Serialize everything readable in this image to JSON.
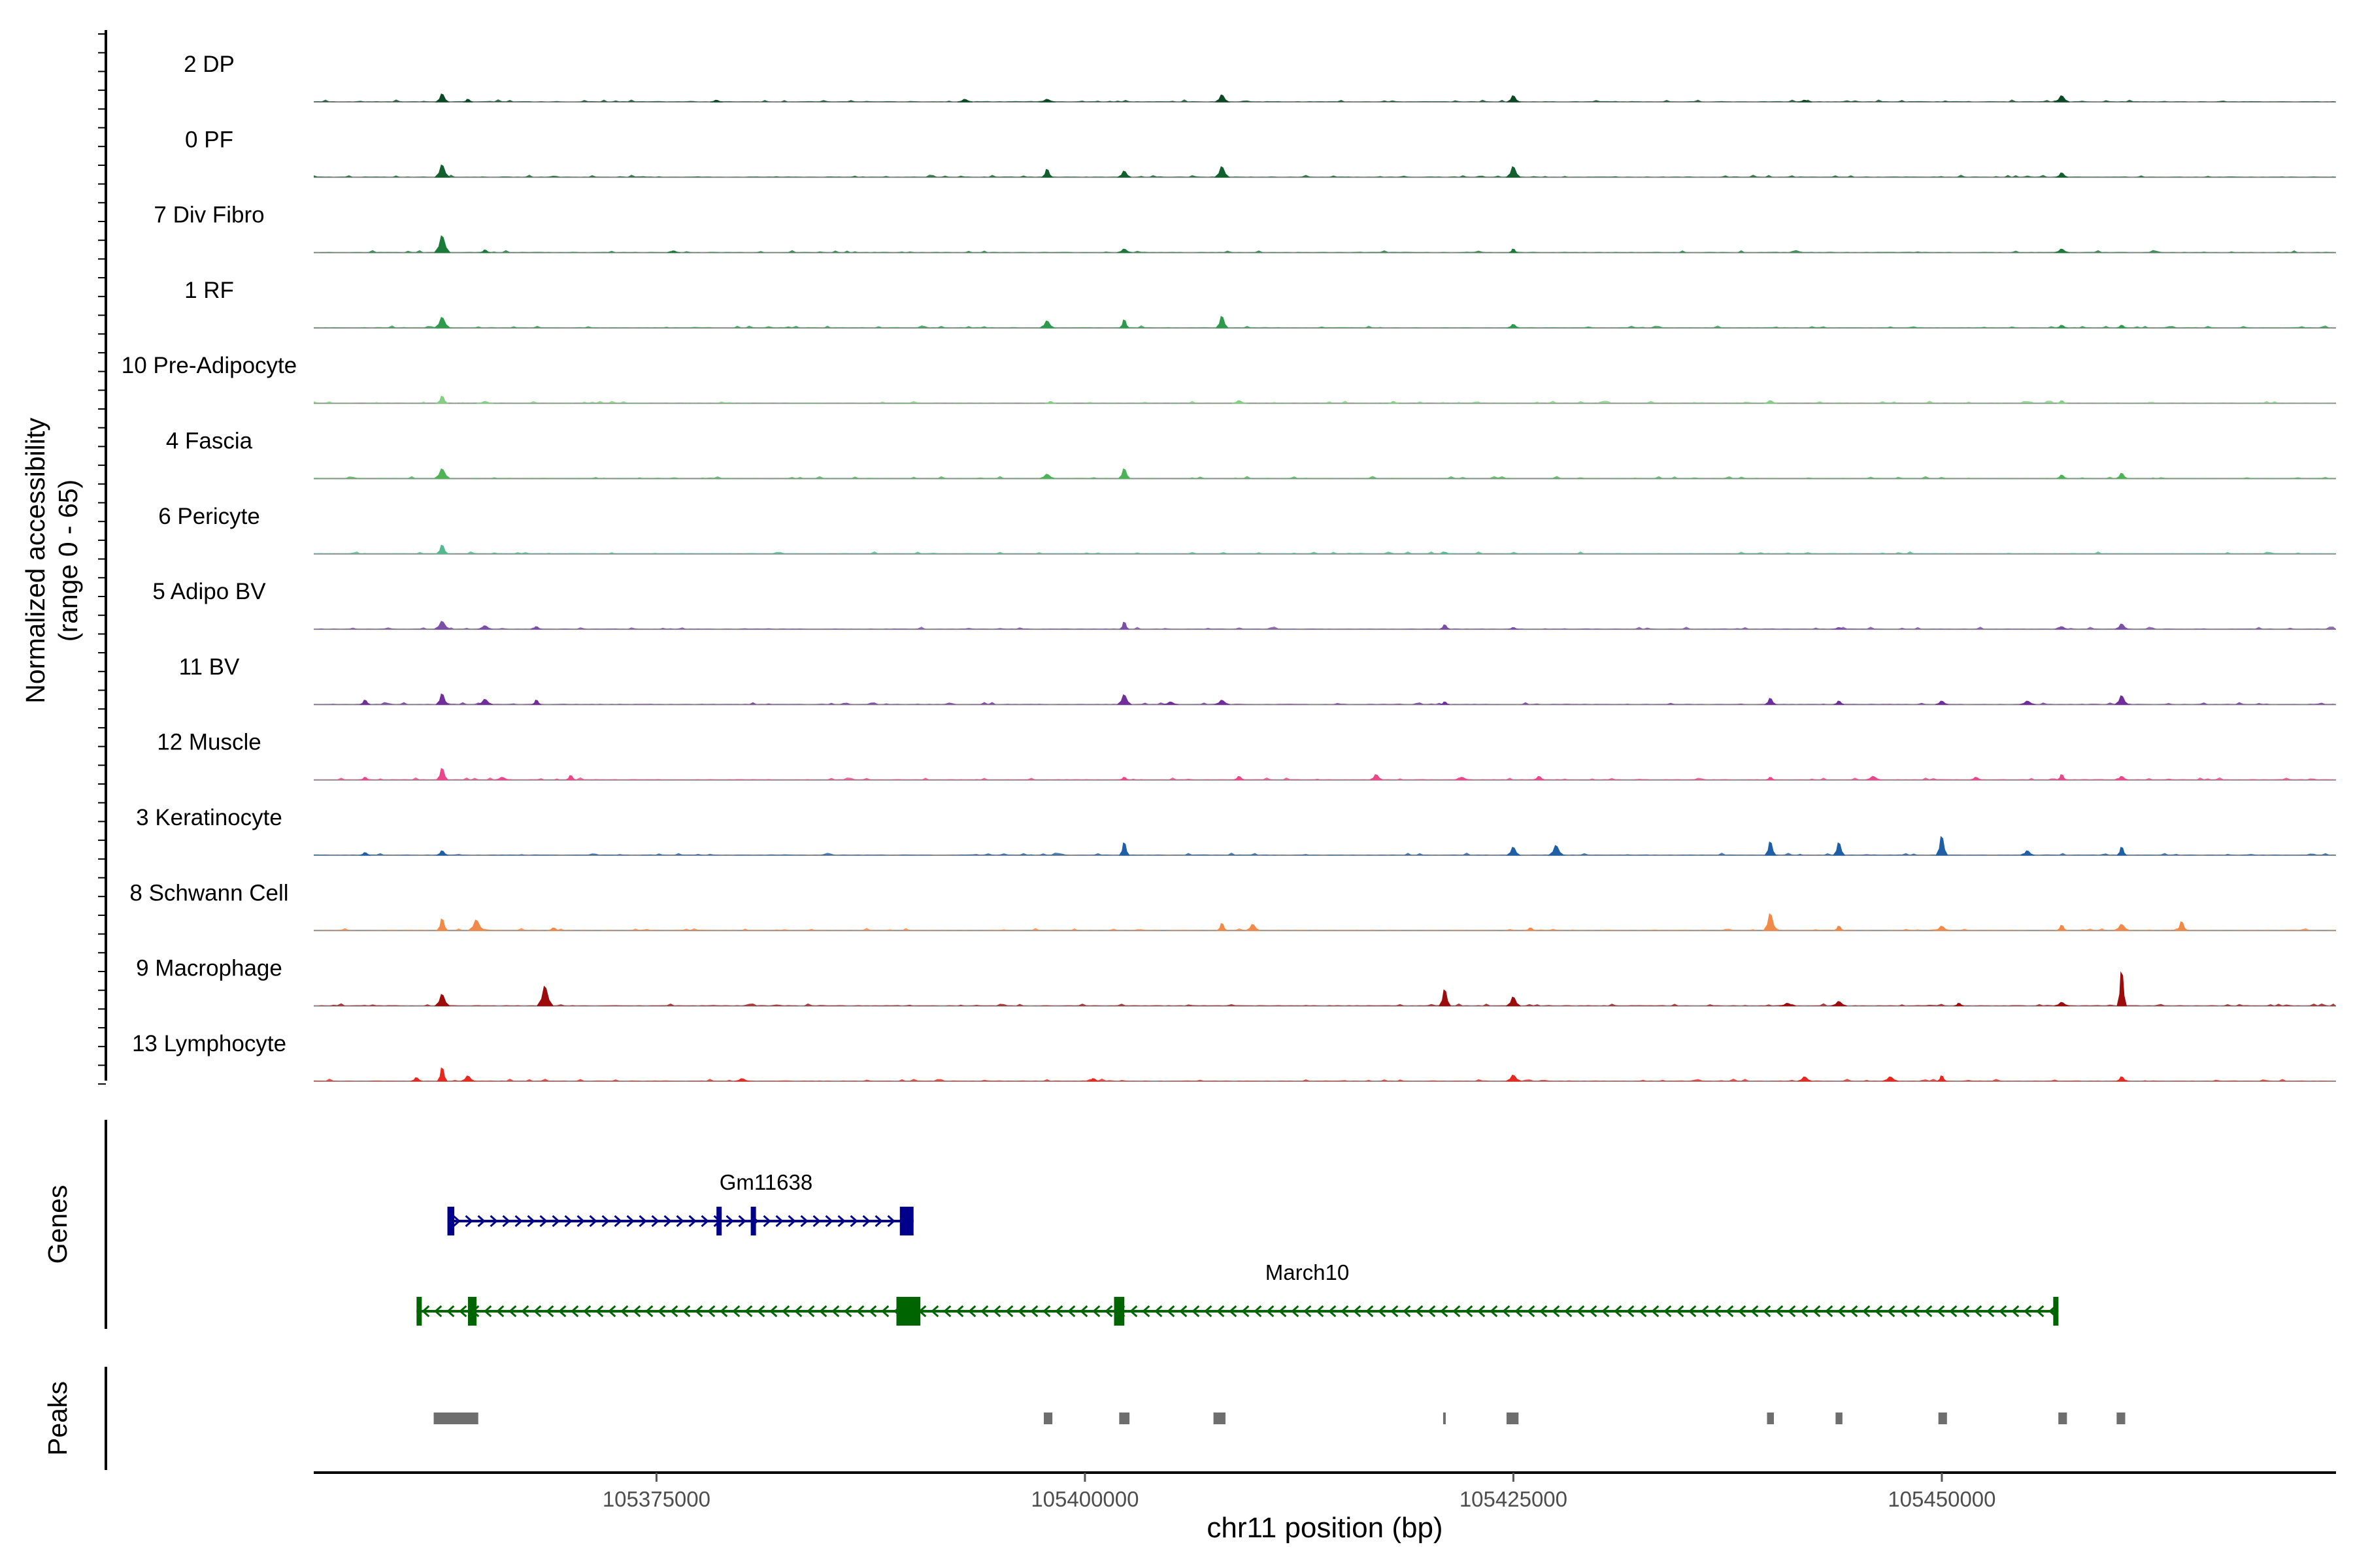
{
  "chart_data": {
    "type": "area",
    "title": "",
    "chromosome": "chr11",
    "xlabel": "chr11 position (bp)",
    "ylabel_line1": "Normalized accessibility",
    "ylabel_line2": "(range 0 - 65)",
    "ylim": [
      0,
      65
    ],
    "xlim": [
      105355000,
      105473000
    ],
    "x_ticks": [
      105375000,
      105400000,
      105425000,
      105450000
    ],
    "x_tick_labels": [
      "105375000",
      "105400000",
      "105425000",
      "105450000"
    ],
    "tracks": [
      {
        "name": "2 DP",
        "color": "#0b4a24",
        "peaks": [
          [
            105362500,
            9
          ],
          [
            105364000,
            3
          ],
          [
            105378500,
            2
          ],
          [
            105393000,
            3
          ],
          [
            105397800,
            3
          ],
          [
            105408000,
            8
          ],
          [
            105425000,
            7
          ],
          [
            105442000,
            2
          ],
          [
            105457000,
            7
          ]
        ]
      },
      {
        "name": "0 PF",
        "color": "#12602e",
        "peaks": [
          [
            105362500,
            14
          ],
          [
            105397800,
            9
          ],
          [
            105402300,
            7
          ],
          [
            105408000,
            12
          ],
          [
            105425000,
            12
          ],
          [
            105457000,
            5
          ]
        ]
      },
      {
        "name": "7 Div Fibro",
        "color": "#1a7a3a",
        "peaks": [
          [
            105362500,
            19
          ],
          [
            105365000,
            3
          ],
          [
            105376000,
            2
          ],
          [
            105402300,
            4
          ],
          [
            105425000,
            4
          ],
          [
            105457000,
            4
          ]
        ]
      },
      {
        "name": "1 RF",
        "color": "#2e9a4c",
        "peaks": [
          [
            105362500,
            12
          ],
          [
            105397800,
            8
          ],
          [
            105402300,
            9
          ],
          [
            105408000,
            13
          ],
          [
            105425000,
            4
          ],
          [
            105457000,
            3
          ],
          [
            105460500,
            3
          ]
        ]
      },
      {
        "name": "10 Pre-Adipocyte",
        "color": "#84cf84",
        "peaks": [
          [
            105362500,
            8
          ],
          [
            105365000,
            2
          ],
          [
            105398000,
            2
          ],
          [
            105409000,
            3
          ],
          [
            105418000,
            2
          ],
          [
            105440000,
            3
          ],
          [
            105457000,
            3
          ]
        ]
      },
      {
        "name": "4 Fascia",
        "color": "#4eb357",
        "peaks": [
          [
            105362500,
            11
          ],
          [
            105397800,
            5
          ],
          [
            105402300,
            11
          ],
          [
            105457000,
            4
          ],
          [
            105460500,
            6
          ]
        ]
      },
      {
        "name": "6 Pericyte",
        "color": "#54b891",
        "peaks": [
          [
            105362500,
            10
          ],
          [
            105421000,
            2
          ]
        ]
      },
      {
        "name": "5 Adipo BV",
        "color": "#7a4fa6",
        "peaks": [
          [
            105362500,
            9
          ],
          [
            105365000,
            4
          ],
          [
            105368000,
            3
          ],
          [
            105402300,
            8
          ],
          [
            105421000,
            5
          ],
          [
            105425000,
            2
          ],
          [
            105444000,
            2
          ],
          [
            105457000,
            3
          ],
          [
            105460500,
            6
          ]
        ]
      },
      {
        "name": "11 BV",
        "color": "#6f2e99",
        "peaks": [
          [
            105362500,
            12
          ],
          [
            105365000,
            6
          ],
          [
            105358000,
            5
          ],
          [
            105368000,
            5
          ],
          [
            105402300,
            11
          ],
          [
            105405000,
            3
          ],
          [
            105408000,
            5
          ],
          [
            105421000,
            3
          ],
          [
            105440000,
            7
          ],
          [
            105444000,
            4
          ],
          [
            105450000,
            4
          ],
          [
            105455000,
            4
          ],
          [
            105460500,
            10
          ]
        ]
      },
      {
        "name": "12 Muscle",
        "color": "#e8488a",
        "peaks": [
          [
            105362500,
            13
          ],
          [
            105358000,
            3
          ],
          [
            105366000,
            3
          ],
          [
            105370000,
            5
          ],
          [
            105402300,
            3
          ],
          [
            105409000,
            4
          ],
          [
            105417000,
            6
          ],
          [
            105422000,
            3
          ],
          [
            105426500,
            4
          ],
          [
            105440000,
            3
          ],
          [
            105446000,
            4
          ],
          [
            105452000,
            3
          ],
          [
            105457000,
            6
          ],
          [
            105460500,
            4
          ]
        ]
      },
      {
        "name": "3 Keratinocyte",
        "color": "#1f5fa8",
        "peaks": [
          [
            105362500,
            5
          ],
          [
            105358000,
            3
          ],
          [
            105402300,
            14
          ],
          [
            105425000,
            9
          ],
          [
            105427500,
            11
          ],
          [
            105440000,
            15
          ],
          [
            105444000,
            14
          ],
          [
            105450000,
            21
          ],
          [
            105455000,
            5
          ],
          [
            105460500,
            9
          ]
        ]
      },
      {
        "name": "8 Schwann Cell",
        "color": "#f08a4b",
        "peaks": [
          [
            105362500,
            13
          ],
          [
            105364500,
            12
          ],
          [
            105369000,
            3
          ],
          [
            105408000,
            8
          ],
          [
            105409800,
            7
          ],
          [
            105426000,
            3
          ],
          [
            105440000,
            19
          ],
          [
            105444000,
            5
          ],
          [
            105450000,
            5
          ],
          [
            105457000,
            6
          ],
          [
            105460500,
            7
          ],
          [
            105464000,
            10
          ]
        ]
      },
      {
        "name": "9 Macrophage",
        "color": "#9c0c0c",
        "peaks": [
          [
            105362500,
            13
          ],
          [
            105368500,
            22
          ],
          [
            105421000,
            18
          ],
          [
            105425000,
            10
          ],
          [
            105441000,
            3
          ],
          [
            105444000,
            5
          ],
          [
            105451000,
            3
          ],
          [
            105457000,
            4
          ],
          [
            105460500,
            38
          ]
        ]
      },
      {
        "name": "13 Lymphocyte",
        "color": "#e8281e",
        "peaks": [
          [
            105362500,
            15
          ],
          [
            105361000,
            4
          ],
          [
            105364000,
            6
          ],
          [
            105380000,
            3
          ],
          [
            105400500,
            3
          ],
          [
            105425000,
            7
          ],
          [
            105442000,
            5
          ],
          [
            105447000,
            5
          ],
          [
            105450000,
            6
          ],
          [
            105460500,
            5
          ]
        ]
      }
    ],
    "genes_label": "Genes",
    "genes": [
      {
        "name": "Gm11638",
        "strand": "+",
        "color": "#00008b",
        "start": 105362800,
        "end": 105390000,
        "exons": [
          [
            105362800,
            105363200
          ],
          [
            105378500,
            105378800
          ],
          [
            105380500,
            105380700
          ],
          [
            105389200,
            105390000
          ]
        ]
      },
      {
        "name": "March10",
        "strand": "-",
        "color": "#006400",
        "start": 105361000,
        "end": 105456800,
        "exons": [
          [
            105361000,
            105361300
          ],
          [
            105364000,
            105364500
          ],
          [
            105389000,
            105390400
          ],
          [
            105401700,
            105402300
          ],
          [
            105456500,
            105456800
          ]
        ]
      }
    ],
    "peaks_label": "Peaks",
    "peak_regions": [
      [
        105362000,
        105364600
      ],
      [
        105397600,
        105398100
      ],
      [
        105402000,
        105402600
      ],
      [
        105407500,
        105408200
      ],
      [
        105420900,
        105421000
      ],
      [
        105424600,
        105425300
      ],
      [
        105439800,
        105440200
      ],
      [
        105443800,
        105444200
      ],
      [
        105449800,
        105450300
      ],
      [
        105456800,
        105457300
      ],
      [
        105460200,
        105460700
      ]
    ]
  }
}
